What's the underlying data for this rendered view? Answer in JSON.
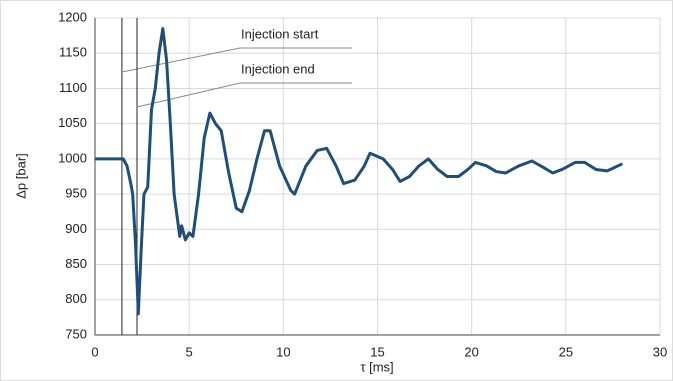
{
  "chart_data": {
    "type": "line",
    "xlabel": "τ [ms]",
    "ylabel": "Δp [bar]",
    "xlim": [
      0,
      30
    ],
    "xticks": [
      0,
      5,
      10,
      15,
      20,
      25,
      30
    ],
    "ylim": [
      750,
      1200
    ],
    "yticks": [
      750,
      800,
      850,
      900,
      950,
      1000,
      1050,
      1100,
      1150,
      1200
    ],
    "grid": true,
    "series": [
      {
        "color": "#1f4e79",
        "x": [
          0,
          1.5,
          1.7,
          1.9,
          2.0,
          2.15,
          2.3,
          2.45,
          2.6,
          2.8,
          3.0,
          3.2,
          3.4,
          3.6,
          3.8,
          4.0,
          4.2,
          4.5,
          4.6,
          4.8,
          5.0,
          5.2,
          5.5,
          5.8,
          6.1,
          6.4,
          6.7,
          7.1,
          7.5,
          7.8,
          8.2,
          8.6,
          9.0,
          9.3,
          9.8,
          10.4,
          10.6,
          11.2,
          11.8,
          12.3,
          12.8,
          13.2,
          13.8,
          14.3,
          14.6,
          15.3,
          15.8,
          16.2,
          16.7,
          17.2,
          17.7,
          18.2,
          18.7,
          19.3,
          19.8,
          20.2,
          20.8,
          21.3,
          21.8,
          22.5,
          23.2,
          23.8,
          24.3,
          24.8,
          25.5,
          26.0,
          26.6,
          27.2,
          27.6,
          28.0
        ],
        "values": [
          1000,
          1000,
          990,
          965,
          950,
          880,
          780,
          870,
          950,
          960,
          1070,
          1100,
          1150,
          1185,
          1140,
          1050,
          950,
          890,
          905,
          885,
          895,
          890,
          950,
          1030,
          1065,
          1050,
          1040,
          980,
          930,
          925,
          955,
          1000,
          1040,
          1040,
          990,
          955,
          950,
          990,
          1012,
          1015,
          990,
          965,
          970,
          990,
          1008,
          1000,
          985,
          968,
          975,
          990,
          1000,
          985,
          975,
          975,
          985,
          995,
          990,
          982,
          980,
          990,
          997,
          988,
          980,
          985,
          995,
          995,
          985,
          983,
          988,
          993
        ]
      }
    ],
    "annotations": [
      {
        "text": "Injection start",
        "x": 1.43
      },
      {
        "text": "Injection end",
        "x": 2.23
      }
    ]
  }
}
